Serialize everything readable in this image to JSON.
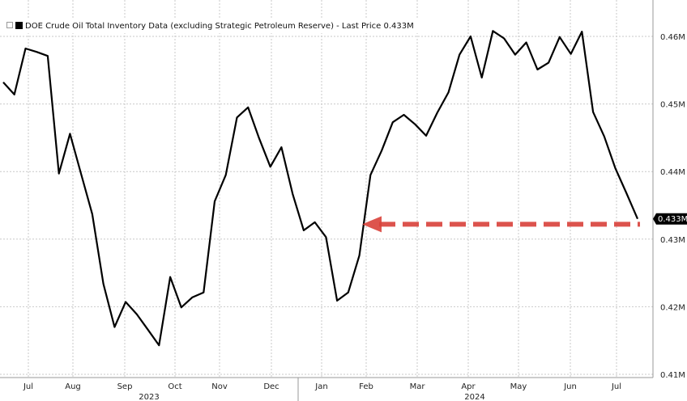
{
  "chart_data": {
    "type": "line",
    "legend": "DOE Crude Oil Total Inventory Data (excluding Strategic Petroleum Reserve) - Last Price 0.433M",
    "legend_position": "top-left",
    "last_value_label": "0.433M",
    "series_color": "#000000",
    "arrow_color": "#d9413a",
    "grid": true,
    "y_ticks": [
      "0.46M",
      "0.45M",
      "0.44M",
      "0.43M",
      "0.42M",
      "0.41M"
    ],
    "y_tick_values": [
      0.46,
      0.45,
      0.44,
      0.43,
      0.42,
      0.41
    ],
    "ylim": [
      0.41,
      0.4635
    ],
    "month_labels": [
      "Jul",
      "Aug",
      "Sep",
      "Oct",
      "Nov",
      "Dec",
      "Jan",
      "Feb",
      "Mar",
      "Apr",
      "May",
      "Jun",
      "Jul"
    ],
    "year_labels": [
      "2023",
      "2024"
    ],
    "arrow_level": 0.4322,
    "values": [
      0.4532,
      0.4514,
      0.4582,
      0.4577,
      0.4571,
      0.4397,
      0.4456,
      0.4396,
      0.4337,
      0.4234,
      0.417,
      0.4207,
      0.4189,
      0.4166,
      0.4143,
      0.4244,
      0.4199,
      0.4214,
      0.4221,
      0.4356,
      0.4395,
      0.448,
      0.4495,
      0.4449,
      0.4407,
      0.4436,
      0.4367,
      0.4313,
      0.4325,
      0.4303,
      0.4209,
      0.4221,
      0.4276,
      0.4395,
      0.4431,
      0.4473,
      0.4484,
      0.447,
      0.4453,
      0.4487,
      0.4517,
      0.4573,
      0.46,
      0.4539,
      0.4608,
      0.4597,
      0.4573,
      0.4591,
      0.4551,
      0.4561,
      0.4599,
      0.4574,
      0.4607,
      0.4488,
      0.4452,
      0.4405,
      0.4368,
      0.433
    ]
  }
}
